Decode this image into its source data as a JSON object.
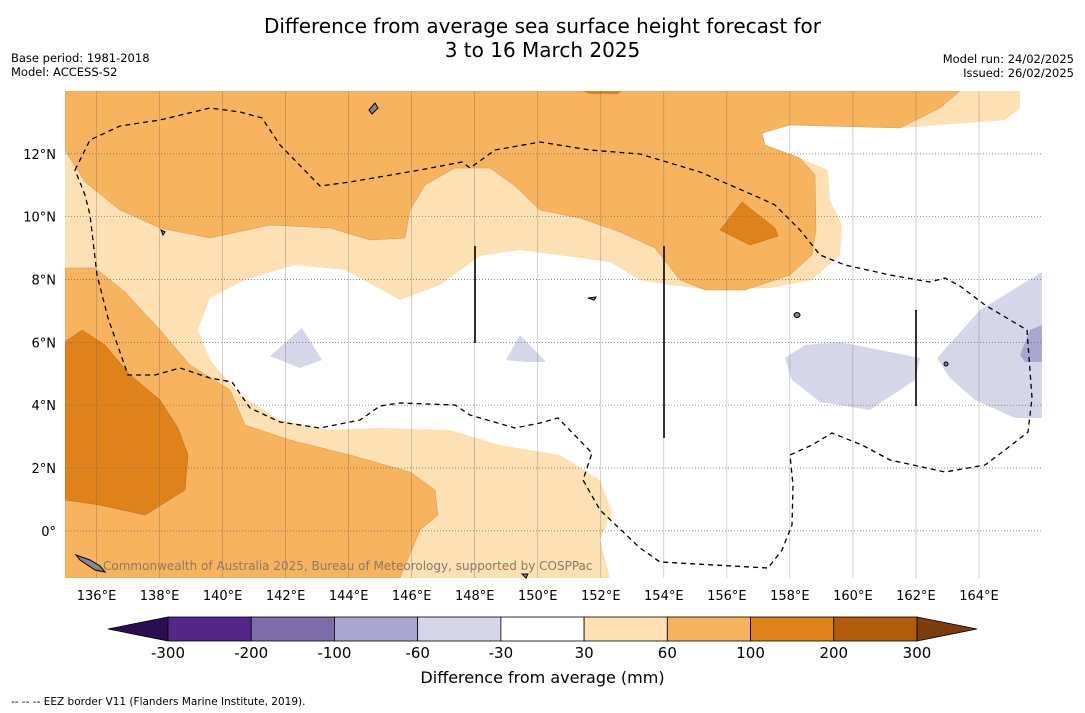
{
  "title": {
    "line1": "Difference from average sea surface height forecast for",
    "line2": "3 to 16 March 2025"
  },
  "meta": {
    "base_period": "Base period: 1981-2018",
    "model": "Model: ACCESS-S2",
    "model_run": "Model run: 24/02/2025",
    "issued": "Issued: 26/02/2025"
  },
  "map": {
    "lon_range": [
      135,
      166
    ],
    "lat_range": [
      -1.5,
      14
    ],
    "lon_ticks": [
      136,
      138,
      140,
      142,
      144,
      146,
      148,
      150,
      152,
      154,
      156,
      158,
      160,
      162,
      164
    ],
    "lon_labels": [
      "136°E",
      "138°E",
      "140°E",
      "142°E",
      "144°E",
      "146°E",
      "148°E",
      "150°E",
      "152°E",
      "154°E",
      "156°E",
      "158°E",
      "160°E",
      "162°E",
      "164°E"
    ],
    "lat_ticks": [
      0,
      2,
      4,
      6,
      8,
      10,
      12
    ],
    "lat_labels": [
      "0°",
      "2°N",
      "4°N",
      "6°N",
      "8°N",
      "10°N",
      "12°N"
    ],
    "gridlines": true,
    "credit": "Commonwealth of Australia 2025, Bureau of Meteorology, supported by COSPPac"
  },
  "colorbar": {
    "ticks": [
      "-300",
      "-200",
      "-100",
      "-60",
      "-30",
      "30",
      "60",
      "100",
      "200",
      "300"
    ],
    "colors": [
      "#2d0d52",
      "#54268a",
      "#7c6daa",
      "#aba6cf",
      "#d6d6ea",
      "#ffffff",
      "#fde0b4",
      "#f8b35f",
      "#e0821a",
      "#b35c0c",
      "#7a3e0a"
    ],
    "label": "Difference from average (mm)"
  },
  "footnote": "--  --  -- EEZ border V11 (Flanders Marine Institute, 2019)."
}
